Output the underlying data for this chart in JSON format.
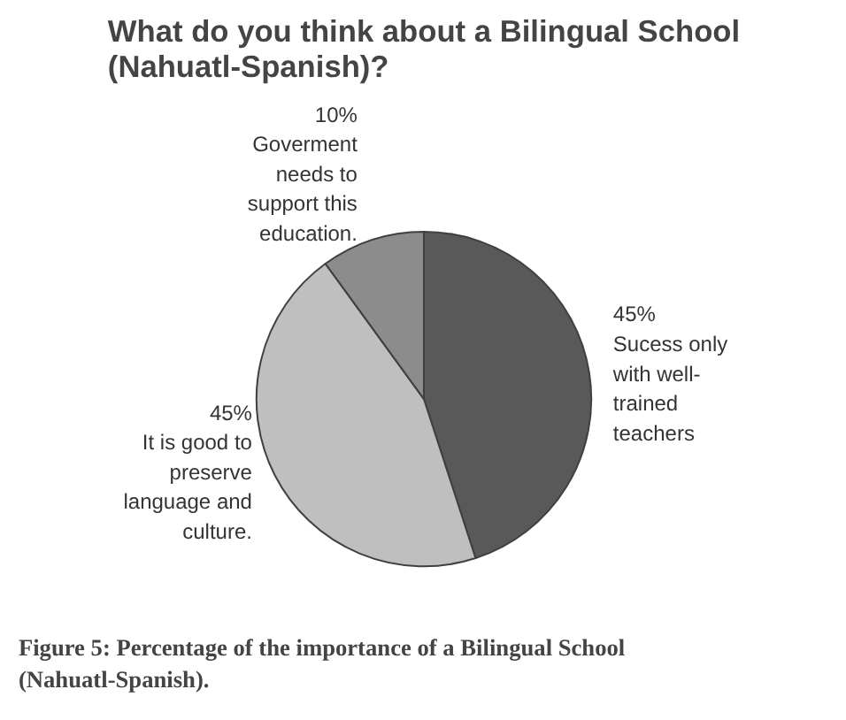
{
  "chart_data": {
    "type": "pie",
    "title": "What do you think about a Bilingual School (Nahuatl-Spanish)?",
    "categories": [
      "Sucess only with well-trained teachers",
      "It is good to preserve language and culture.",
      "Goverment needs to support this education."
    ],
    "values": [
      45,
      45,
      10
    ],
    "colors": [
      "#595959",
      "#bfbfbf",
      "#8c8c8c"
    ],
    "value_labels": [
      "45%",
      "45%",
      "10%"
    ],
    "annotations": [
      "Figure 5: Percentage of the importance of a Bilingual School (Nahuatl-Spanish)."
    ]
  }
}
